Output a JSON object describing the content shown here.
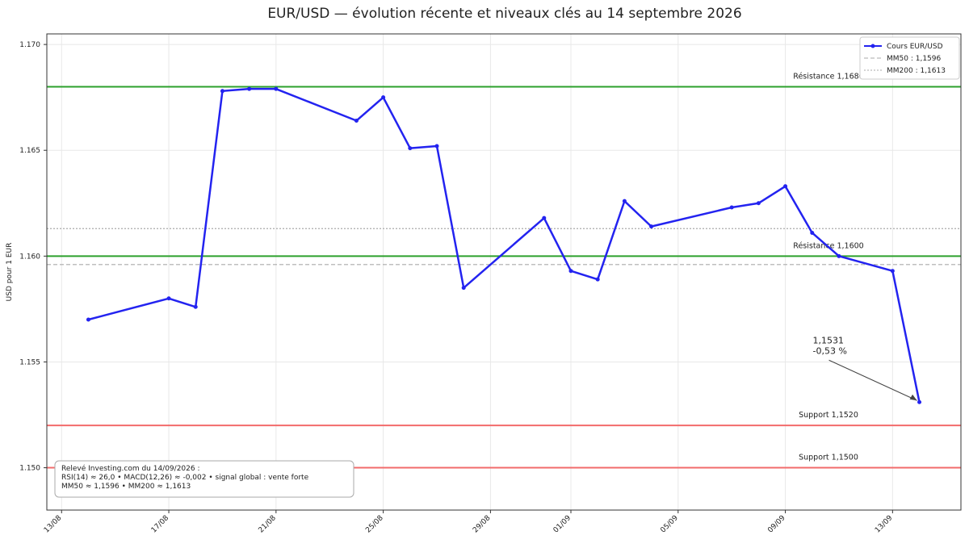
{
  "chart_data": {
    "type": "line",
    "title": "EUR/USD — évolution récente et niveaux clés au 14 septembre 2026",
    "y_label": "USD pour 1 EUR",
    "x": [
      "14/08",
      "17/08",
      "18/08",
      "19/08",
      "20/08",
      "21/08",
      "24/08",
      "25/08",
      "26/08",
      "27/08",
      "28/08",
      "31/08",
      "01/09",
      "02/09",
      "03/09",
      "04/09",
      "07/09",
      "08/09",
      "09/09",
      "10/09",
      "11/09",
      "13/09",
      "14/09"
    ],
    "series": [
      {
        "name": "Cours EUR/USD",
        "color": "#2323f0",
        "values": [
          1.157,
          1.158,
          1.1576,
          1.1678,
          1.1679,
          1.1679,
          1.1664,
          1.1675,
          1.1651,
          1.1652,
          1.1585,
          1.1618,
          1.1593,
          1.1589,
          1.1626,
          1.1614,
          1.1623,
          1.1625,
          1.1633,
          1.1611,
          1.16,
          1.1593,
          1.1531
        ]
      }
    ],
    "averages": [
      {
        "name": "MM50 : 1,1596",
        "value": 1.1596,
        "color": "#aaaaaa",
        "dash": "dashed"
      },
      {
        "name": "MM200 : 1,1613",
        "value": 1.1613,
        "color": "#aaaaaa",
        "dash": "dotted"
      }
    ],
    "levels": [
      {
        "label": "Résistance 1,1680",
        "value": 1.168,
        "color": "#2ca02c"
      },
      {
        "label": "Résistance 1,1600",
        "value": 1.16,
        "color": "#2ca02c"
      },
      {
        "label": "Support 1,1520",
        "value": 1.152,
        "color": "#f26b6b"
      },
      {
        "label": "Support 1,1500",
        "value": 1.15,
        "color": "#f26b6b"
      }
    ],
    "annotation": [
      "1,1531",
      "-0,53 %"
    ],
    "note": [
      "Relevé Investing.com du 14/09/2026 :",
      "RSI(14) ≈ 26,0 • MACD(12,26) ≈ -0,002 • signal global : vente forte",
      "MM50 ≈ 1,1596 • MM200 ≈ 1,1613"
    ],
    "xticks": [
      "13/08",
      "17/08",
      "21/08",
      "25/08",
      "29/08",
      "01/09",
      "05/09",
      "09/09",
      "13/09"
    ],
    "ylim": [
      1.148,
      1.1705
    ],
    "yticks": [
      {
        "value": 1.15,
        "label": "1.150"
      },
      1.155,
      {
        "value": 1.16,
        "label": "1.160"
      },
      1.165,
      {
        "value": 1.17,
        "label": "1.170"
      }
    ],
    "grid": true,
    "legend": "upper right"
  }
}
